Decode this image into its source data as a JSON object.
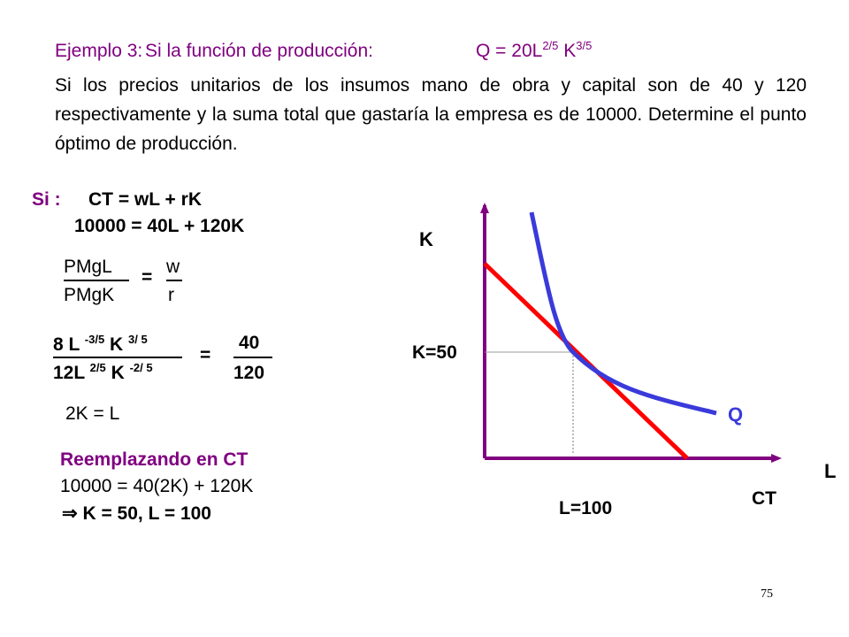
{
  "header": {
    "label": "Ejemplo 3:",
    "intro": "Si la función de producción:",
    "formula_base": "Q = 20L",
    "exp_L": "2/5",
    "k": " K",
    "exp_K": "3/5"
  },
  "paragraph": "Si los precios unitarios de los insumos mano de obra y capital son de 40 y 120 respectivamente y la suma total que gastaría la empresa es de 10000. Determine el punto óptimo de producción.",
  "solution": {
    "si_label": "Si :",
    "ct_eq": "CT = wL + rK",
    "budget_eq": "10000 = 40L + 120K",
    "ratio": {
      "num_left": "PMgL",
      "den_left": "PMgK",
      "equals": "=",
      "num_right": "w",
      "den_right": "r"
    },
    "derivative": {
      "num_a": "8 L ",
      "num_exp1": "-3/5",
      "num_b": " K ",
      "num_exp2": "3/ 5",
      "den_a": "12L ",
      "den_exp1": "2/5",
      "den_b": " K ",
      "den_exp2": "-2/ 5",
      "equals": "=",
      "rnum": "40",
      "rden": "120"
    },
    "relation": "2K = L",
    "replace_title": "Reemplazando en CT",
    "replace_eq": "10000 = 40(2K) + 120K",
    "result_arrow": "⇒",
    "result": " K = 50,  L = 100"
  },
  "graph": {
    "k_axis": "K",
    "l_axis": "L",
    "k_value": "K=50",
    "l_value": "L=100",
    "curve_label": "Q",
    "line_label": "CT",
    "colors": {
      "axes": "#800080",
      "budget_line": "#ff0000",
      "isoquant": "#3a3adb",
      "guides": "#999999"
    }
  },
  "page_number": "75"
}
